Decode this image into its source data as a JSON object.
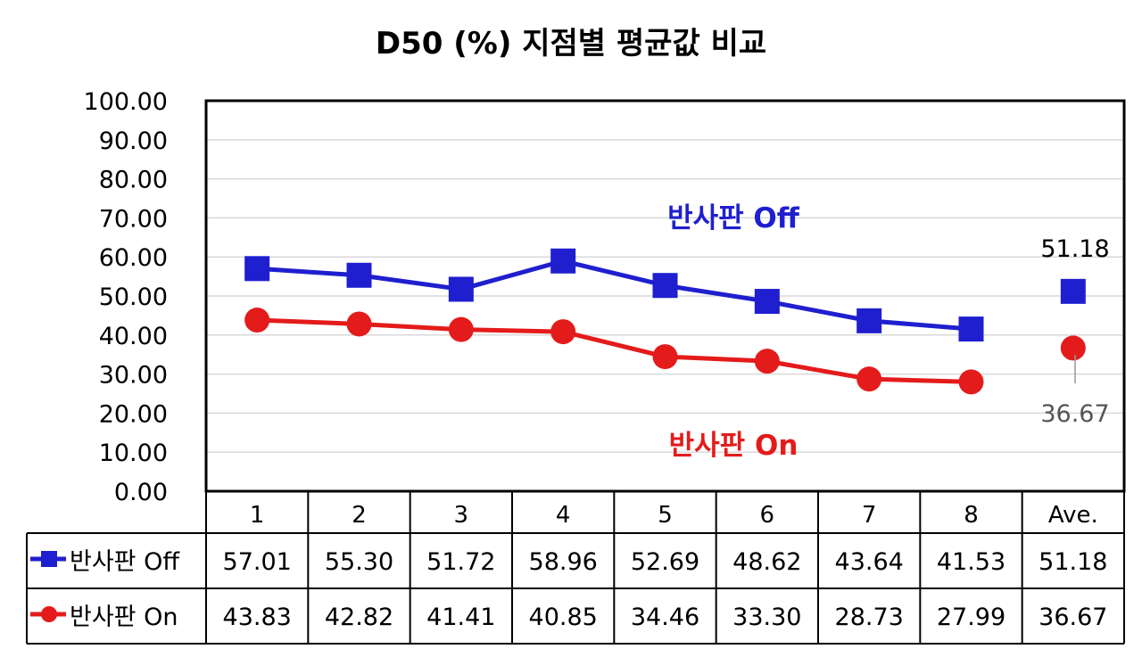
{
  "chart_data": {
    "type": "line",
    "title": "D50 (%) 지점별 평균값 비교",
    "categories": [
      "1",
      "2",
      "3",
      "4",
      "5",
      "6",
      "7",
      "8",
      "Ave."
    ],
    "ylim": [
      0,
      100
    ],
    "y_ticks": [
      "0.00",
      "10.00",
      "20.00",
      "30.00",
      "40.00",
      "50.00",
      "60.00",
      "70.00",
      "80.00",
      "90.00",
      "100.00"
    ],
    "grid": true,
    "legend": "data-table",
    "series": [
      {
        "name": "반사판 Off",
        "color": "#1f1fcf",
        "marker": "square",
        "values": [
          57.01,
          55.3,
          51.72,
          58.96,
          52.69,
          48.62,
          43.64,
          41.53,
          51.18
        ],
        "labels": [
          "57.01",
          "55.30",
          "51.72",
          "58.96",
          "52.69",
          "48.62",
          "43.64",
          "41.53",
          "51.18"
        ]
      },
      {
        "name": "반사판 On",
        "color": "#e41b1b",
        "marker": "circle",
        "values": [
          43.83,
          42.82,
          41.41,
          40.85,
          34.46,
          33.3,
          28.73,
          27.99,
          36.67
        ],
        "labels": [
          "43.83",
          "42.82",
          "41.41",
          "40.85",
          "34.46",
          "33.30",
          "28.73",
          "27.99",
          "36.67"
        ]
      }
    ],
    "annotations": {
      "off_label": "반사판 Off",
      "on_label": "반사판 On",
      "ave_off": "51.18",
      "ave_on": "36.67"
    }
  }
}
